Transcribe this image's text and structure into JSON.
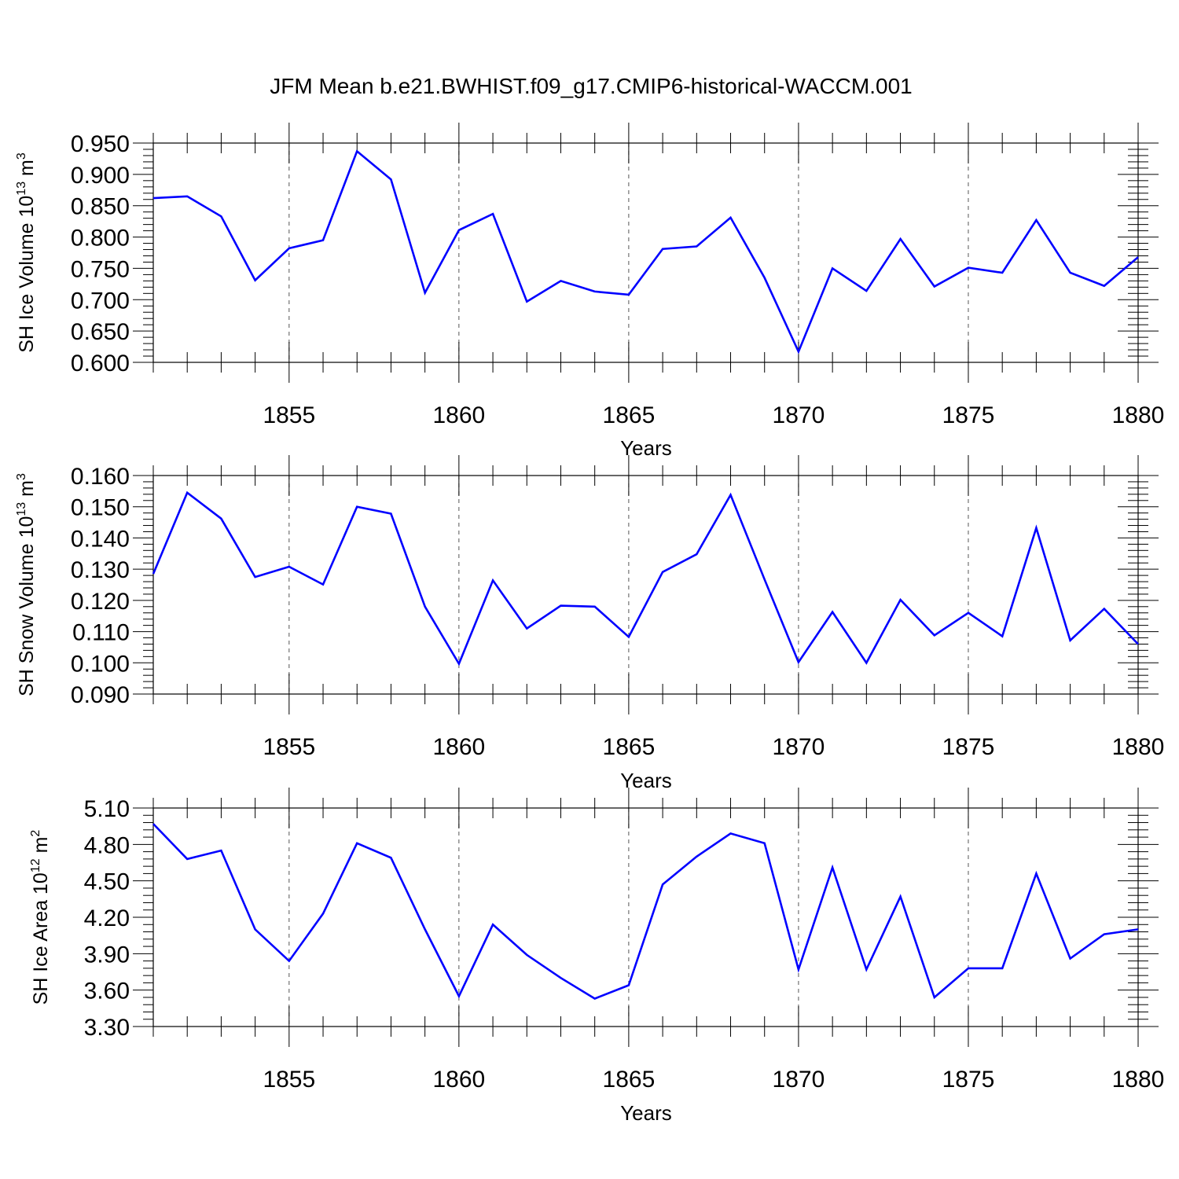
{
  "main_title": "JFM Mean b.e21.BWHIST.f09_g17.CMIP6-historical-WACCM.001",
  "colors": {
    "line": "#0000ff",
    "axis": "#000000",
    "grid": "#555555"
  },
  "chart_data": [
    {
      "type": "line",
      "title": "",
      "xlabel": "Years",
      "ylabel_main": "SH Ice Volume 10",
      "ylabel_exp": "13",
      "ylabel_unit": " m",
      "ylabel_unit_exp": "3",
      "xlim": [
        1851,
        1880
      ],
      "ylim": [
        0.6,
        0.95
      ],
      "yticks": [
        "0.600",
        "0.650",
        "0.700",
        "0.750",
        "0.800",
        "0.850",
        "0.900",
        "0.950"
      ],
      "xticks": [
        "1855",
        "1860",
        "1865",
        "1870",
        "1875",
        "1880"
      ],
      "grid": "vertical dashed",
      "series": [
        {
          "x": [
            1851,
            1852,
            1853,
            1854,
            1855,
            1856,
            1857,
            1858,
            1859,
            1860,
            1861,
            1862,
            1863,
            1864,
            1865,
            1866,
            1867,
            1868,
            1869,
            1870,
            1871,
            1872,
            1873,
            1874,
            1875,
            1876,
            1877,
            1878,
            1879,
            1880
          ],
          "values": [
            0.862,
            0.865,
            0.833,
            0.731,
            0.782,
            0.795,
            0.937,
            0.892,
            0.711,
            0.811,
            0.837,
            0.697,
            0.73,
            0.713,
            0.708,
            0.781,
            0.785,
            0.831,
            0.735,
            0.617,
            0.75,
            0.714,
            0.797,
            0.721,
            0.751,
            0.743,
            0.827,
            0.743,
            0.722,
            0.768
          ]
        }
      ]
    },
    {
      "type": "line",
      "title": "",
      "xlabel": "Years",
      "ylabel_main": "SH Snow Volume 10",
      "ylabel_exp": "13",
      "ylabel_unit": " m",
      "ylabel_unit_exp": "3",
      "xlim": [
        1851,
        1880
      ],
      "ylim": [
        0.09,
        0.16
      ],
      "yticks": [
        "0.090",
        "0.100",
        "0.110",
        "0.120",
        "0.130",
        "0.140",
        "0.150",
        "0.160"
      ],
      "xticks": [
        "1855",
        "1860",
        "1865",
        "1870",
        "1875",
        "1880"
      ],
      "grid": "vertical dashed",
      "series": [
        {
          "x": [
            1851,
            1852,
            1853,
            1854,
            1855,
            1856,
            1857,
            1858,
            1859,
            1860,
            1861,
            1862,
            1863,
            1864,
            1865,
            1866,
            1867,
            1868,
            1869,
            1870,
            1871,
            1872,
            1873,
            1874,
            1875,
            1876,
            1877,
            1878,
            1879,
            1880
          ],
          "values": [
            0.1285,
            0.1545,
            0.1462,
            0.1275,
            0.1308,
            0.1251,
            0.15,
            0.1478,
            0.118,
            0.0997,
            0.1264,
            0.111,
            0.1183,
            0.118,
            0.1083,
            0.1291,
            0.1348,
            0.1538,
            0.1267,
            0.1002,
            0.1163,
            0.1,
            0.1202,
            0.1088,
            0.116,
            0.1085,
            0.1432,
            0.1072,
            0.1173,
            0.106
          ]
        }
      ]
    },
    {
      "type": "line",
      "title": "",
      "xlabel": "Years",
      "ylabel_main": "SH Ice Area 10",
      "ylabel_exp": "12",
      "ylabel_unit": " m",
      "ylabel_unit_exp": "2",
      "xlim": [
        1851,
        1880
      ],
      "ylim": [
        3.3,
        5.1
      ],
      "yticks": [
        "3.30",
        "3.60",
        "3.90",
        "4.20",
        "4.50",
        "4.80",
        "5.10"
      ],
      "xticks": [
        "1855",
        "1860",
        "1865",
        "1870",
        "1875",
        "1880"
      ],
      "grid": "vertical dashed",
      "series": [
        {
          "x": [
            1851,
            1852,
            1853,
            1854,
            1855,
            1856,
            1857,
            1858,
            1859,
            1860,
            1861,
            1862,
            1863,
            1864,
            1865,
            1866,
            1867,
            1868,
            1869,
            1870,
            1871,
            1872,
            1873,
            1874,
            1875,
            1876,
            1877,
            1878,
            1879,
            1880
          ],
          "values": [
            4.97,
            4.68,
            4.75,
            4.1,
            3.84,
            4.23,
            4.81,
            4.69,
            4.1,
            3.55,
            4.14,
            3.89,
            3.7,
            3.53,
            3.64,
            4.47,
            4.7,
            4.89,
            4.81,
            3.77,
            4.61,
            3.77,
            4.37,
            3.54,
            3.78,
            3.78,
            4.56,
            3.86,
            4.06,
            4.1
          ]
        }
      ]
    }
  ]
}
